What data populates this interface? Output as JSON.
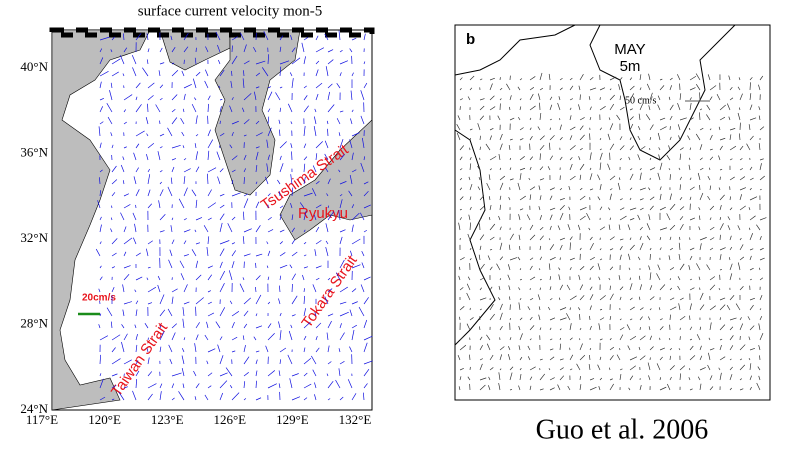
{
  "left_map": {
    "title": "surface current velocity mon-5",
    "lat_labels": [
      "40°N",
      "36°N",
      "32°N",
      "28°N",
      "24°N"
    ],
    "lon_labels": [
      "117°E",
      "120°E",
      "123°E",
      "126°E",
      "129°E",
      "132°E"
    ],
    "annotations": [
      "Tsushima Strait",
      "Ryukyu",
      "Tokara Strait",
      "Taiwan Strait"
    ],
    "scale_label": "20cm/s"
  },
  "right_map": {
    "panel": "b",
    "month": "MAY",
    "depth": "5m",
    "scale_label": "50 cm/s"
  },
  "caption": "Guo et al. 2006"
}
